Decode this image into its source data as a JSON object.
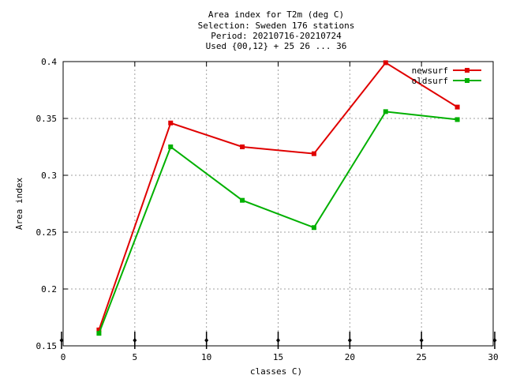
{
  "chart_data": {
    "type": "line",
    "title_lines": [
      "Area index  for T2m (deg C)",
      "Selection: Sweden    176 stations",
      "Period: 20210716-20210724",
      "Used {00,12} + 25 26 ... 36"
    ],
    "xlabel": "classes C)",
    "ylabel": "Area index",
    "xlim": [
      0,
      30
    ],
    "ylim": [
      0.15,
      0.4
    ],
    "xticks": [
      0,
      5,
      10,
      15,
      20,
      25,
      30
    ],
    "yticks": [
      0.15,
      0.2,
      0.25,
      0.3,
      0.35,
      0.4
    ],
    "xtick_labels": [
      "0",
      "5",
      "10",
      "15",
      "20",
      "25",
      "30"
    ],
    "ytick_labels": [
      "0.15",
      "0.2",
      "0.25",
      "0.3",
      "0.35",
      "0.4"
    ],
    "grid": true,
    "legend_position": "top-right",
    "x": [
      2.5,
      7.5,
      12.5,
      17.5,
      22.5,
      27.5
    ],
    "series": [
      {
        "name": "newsurf",
        "color": "#e00000",
        "values": [
          0.164,
          0.346,
          0.325,
          0.319,
          0.399,
          0.36
        ]
      },
      {
        "name": "oldsurf",
        "color": "#00b000",
        "values": [
          0.161,
          0.325,
          0.278,
          0.254,
          0.356,
          0.349
        ]
      }
    ],
    "baseline_markers_x": [
      0,
      5,
      10,
      15,
      20,
      25,
      30
    ]
  }
}
